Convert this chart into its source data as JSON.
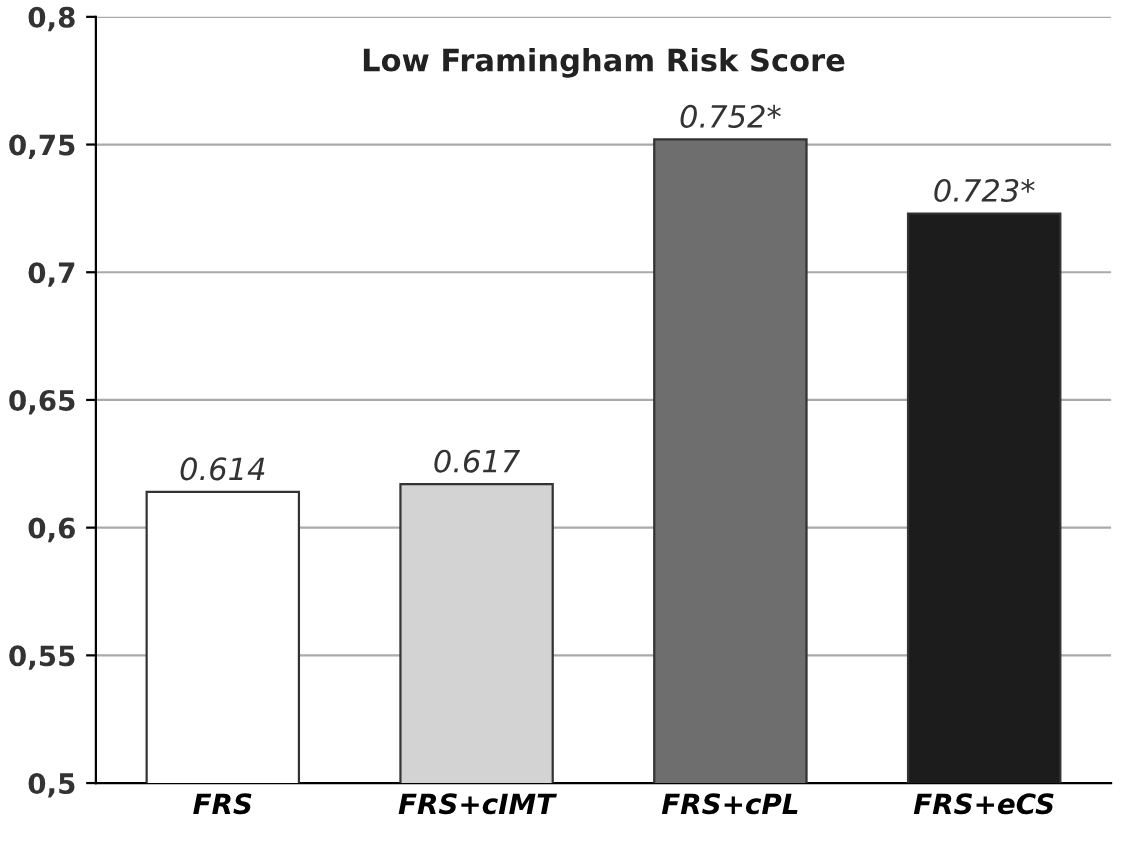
{
  "chart_data": {
    "type": "bar",
    "title": "Low Framingham Risk Score",
    "categories": [
      "FRS",
      "FRS+cIMT",
      "FRS+cPL",
      "FRS+eCS"
    ],
    "values": [
      0.614,
      0.617,
      0.752,
      0.723
    ],
    "value_labels": [
      "0.614",
      "0.617",
      "0.752*",
      "0.723*"
    ],
    "colors": [
      "#ffffff",
      "#d3d3d3",
      "#6e6e6e",
      "#1c1c1c"
    ],
    "ylim": [
      0.5,
      0.8
    ],
    "yticks": [
      {
        "value": 0.5,
        "label": "0,5"
      },
      {
        "value": 0.55,
        "label": "0,55"
      },
      {
        "value": 0.6,
        "label": "0,6"
      },
      {
        "value": 0.65,
        "label": "0,65"
      },
      {
        "value": 0.7,
        "label": "0,7"
      },
      {
        "value": 0.75,
        "label": "0,75"
      },
      {
        "value": 0.8,
        "label": "0,8"
      }
    ],
    "grid": "y"
  }
}
